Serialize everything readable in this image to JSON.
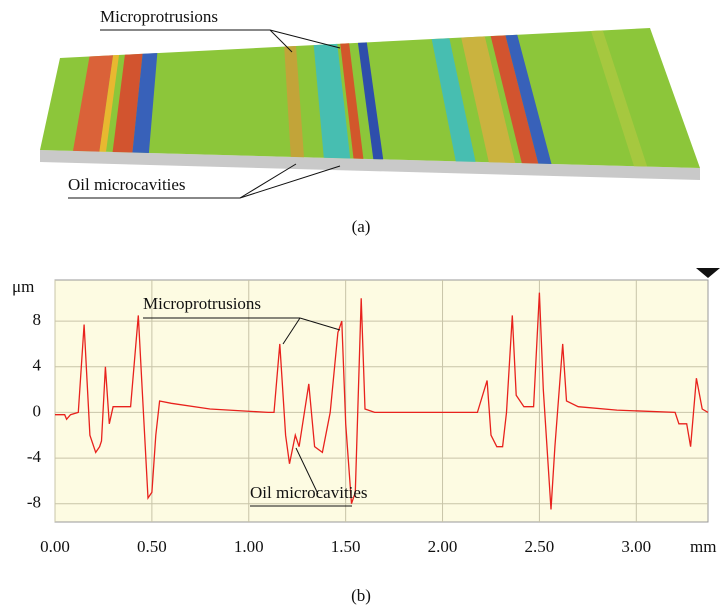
{
  "panel_a": {
    "label_top": "Microprotrusions",
    "label_bottom": "Oil microcavities",
    "caption": "(a)"
  },
  "chart_data": {
    "type": "line",
    "x_label": "mm",
    "y_label": "μm",
    "annotations": [
      "Microprotrusions",
      "Oil microcavities"
    ],
    "caption": "(b)",
    "color": "#e8221d",
    "xlim": [
      0,
      3.37
    ],
    "ylim": [
      -9.6,
      11.6
    ],
    "xticks": [
      {
        "value": 0,
        "label": "0.00"
      },
      {
        "value": 0.5,
        "label": "0.50"
      },
      {
        "value": 1,
        "label": "1.00"
      },
      {
        "value": 1.5,
        "label": "1.50"
      },
      {
        "value": 2,
        "label": "2.00"
      },
      {
        "value": 2.5,
        "label": "2.50"
      },
      {
        "value": 3,
        "label": "3.00"
      }
    ],
    "yticks": [
      -8,
      -4,
      0,
      4,
      8
    ],
    "grid": true,
    "x": [
      0,
      0.05,
      0.06,
      0.08,
      0.12,
      0.15,
      0.18,
      0.21,
      0.23,
      0.24,
      0.26,
      0.28,
      0.3,
      0.39,
      0.43,
      0.45,
      0.48,
      0.5,
      0.52,
      0.54,
      0.6,
      0.8,
      1.1,
      1.13,
      1.16,
      1.19,
      1.21,
      1.24,
      1.26,
      1.31,
      1.34,
      1.38,
      1.42,
      1.46,
      1.48,
      1.5,
      1.53,
      1.55,
      1.58,
      1.6,
      1.65,
      2.0,
      2.18,
      2.23,
      2.25,
      2.28,
      2.31,
      2.33,
      2.36,
      2.38,
      2.42,
      2.47,
      2.5,
      2.52,
      2.56,
      2.58,
      2.62,
      2.64,
      2.7,
      2.9,
      3.2,
      3.22,
      3.26,
      3.28,
      3.31,
      3.34,
      3.37
    ],
    "values": [
      -0.2,
      -0.2,
      -0.6,
      -0.2,
      0,
      7.7,
      -2,
      -3.5,
      -3,
      -2.5,
      4,
      -1,
      0.5,
      0.5,
      8.5,
      2,
      -7.5,
      -7,
      -2,
      1,
      0.8,
      0.3,
      0,
      0,
      6,
      -2,
      -4.5,
      -2,
      -3,
      2.5,
      -3,
      -3.5,
      0,
      7,
      8,
      -1,
      -8,
      -7,
      10,
      0.3,
      0,
      0,
      0,
      2.8,
      -2,
      -3,
      -3,
      0,
      8.5,
      1.5,
      0.5,
      0.5,
      10.5,
      2,
      -8.5,
      -3,
      6,
      1,
      0.5,
      0.2,
      0,
      -1,
      -1,
      -3,
      3,
      0.3,
      0
    ]
  }
}
